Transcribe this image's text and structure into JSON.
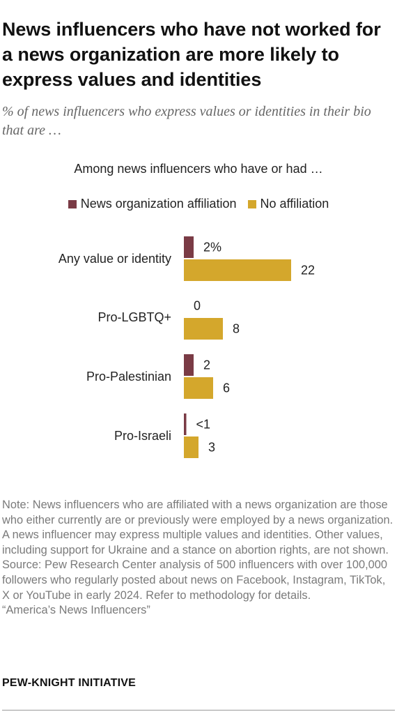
{
  "title": "News influencers who have not worked for a news organization are more likely to express values and identities",
  "subtitle": "% of news influencers who express values or identities in their bio that are …",
  "among_label": "Among news influencers who have or had …",
  "colors": {
    "affiliated": "#7a3b45",
    "unaffiliated": "#d4a72c"
  },
  "chart_data": {
    "type": "bar",
    "orientation": "horizontal",
    "categories": [
      "Any value or identity",
      "Pro-LGBTQ+",
      "Pro-Palestinian",
      "Pro-Israeli"
    ],
    "series": [
      {
        "name": "News organization affiliation",
        "values": [
          2,
          0,
          2,
          0.5
        ],
        "labels": [
          "2%",
          "0",
          "2",
          "<1"
        ]
      },
      {
        "name": "No affiliation",
        "values": [
          22,
          8,
          6,
          3
        ],
        "labels": [
          "22",
          "8",
          "6",
          "3"
        ]
      }
    ],
    "legend_position": "top-center",
    "grid": false,
    "xlim": [
      0,
      22
    ]
  },
  "note": "Note: News influencers who are affiliated with a news organization are those who either currently are or previously were employed by a news organization. A news influencer may express multiple values and identities. Other values, including support for Ukraine and a stance on abortion rights, are not shown.",
  "source": "Source: Pew Research Center analysis of 500 influencers with over 100,000 followers who regularly posted about news on Facebook, Instagram, TikTok, X or YouTube in early 2024. Refer to methodology for details.",
  "report": "“America’s News Influencers”",
  "brand": "PEW-KNIGHT INITIATIVE"
}
